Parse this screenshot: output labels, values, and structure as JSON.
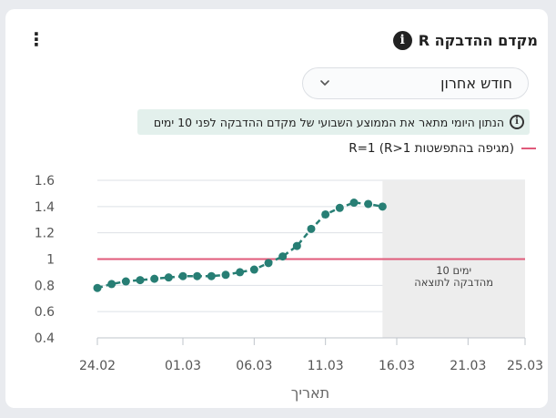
{
  "header": {
    "title": "מקדם ההדבקה R",
    "info_icon": "info-icon",
    "menu_icon": "kebab-menu-icon"
  },
  "filter": {
    "selected": "חודש אחרון",
    "chevron_icon": "chevron-down-icon"
  },
  "note": {
    "text": "הנתון היומי מתאר את הממוצע השבועי של מקדם ההדבקה לפני 10 ימים"
  },
  "legend": {
    "label": "R=1 (R>1 מגיפה בהתפשטות)",
    "color": "#e05a7a"
  },
  "chart_data": {
    "type": "line",
    "x": [
      "24.02",
      "25.02",
      "26.02",
      "27.02",
      "28.02",
      "29.02",
      "01.03",
      "02.03",
      "03.03",
      "04.03",
      "05.03",
      "06.03",
      "07.03",
      "08.03",
      "09.03",
      "10.03",
      "11.03",
      "12.03",
      "13.03",
      "14.03",
      "15.03"
    ],
    "values": [
      0.78,
      0.81,
      0.83,
      0.84,
      0.85,
      0.86,
      0.87,
      0.87,
      0.87,
      0.88,
      0.9,
      0.92,
      0.97,
      1.02,
      1.1,
      1.23,
      1.34,
      1.39,
      1.43,
      1.42,
      1.4
    ],
    "series_color": "#277e74",
    "reference_line": {
      "value": 1,
      "color": "#e05a7a"
    },
    "xticks": [
      "24.02",
      "01.03",
      "06.03",
      "11.03",
      "16.03",
      "21.03",
      "25.03"
    ],
    "yticks": [
      "0.4",
      "0.6",
      "0.8",
      "1",
      "1.2",
      "1.4",
      "1.6"
    ],
    "ylim": [
      0.4,
      1.6
    ],
    "xlabel": "תאריך",
    "ylabel": "",
    "shaded_region": {
      "from": "15.03",
      "to": "25.03",
      "label_line1": "10 ימים",
      "label_line2": "מהדבקה לתוצאה",
      "color": "#ededed"
    },
    "grid": true
  }
}
